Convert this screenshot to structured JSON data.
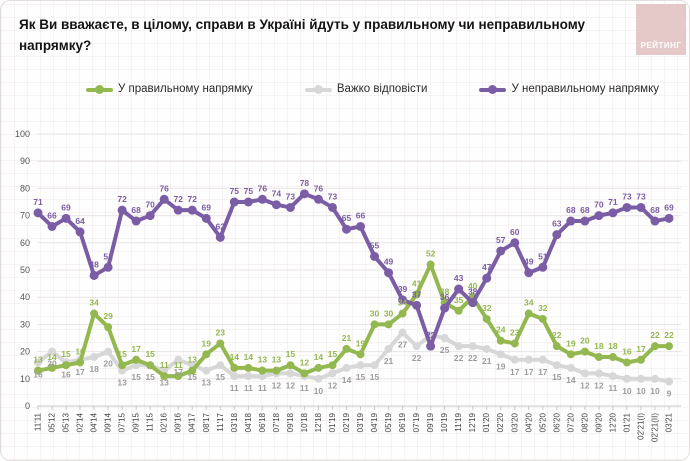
{
  "header": {
    "title": "Як Ви вважаєте, в цілому, справи в Україні йдуть у правильному чи неправильному напрямку?",
    "logo_text": "РЕЙТИНГ"
  },
  "legend": {
    "items": [
      {
        "label": "У правильному напрямку",
        "color": "#93b84f"
      },
      {
        "label": "Важко відповісти",
        "color": "#d7d7d7"
      },
      {
        "label": "У неправильному напрямку",
        "color": "#7b5da5"
      }
    ]
  },
  "chart_data": {
    "type": "line",
    "title": "Як Ви вважаєте, в цілому, справи в Україні йдуть у правильному чи неправильному напрямку?",
    "xlabel": "",
    "ylabel": "",
    "ylim": [
      0,
      100
    ],
    "yticks": [
      0,
      10,
      20,
      30,
      40,
      50,
      60,
      70,
      80,
      90,
      100
    ],
    "grid": true,
    "legend_position": "top",
    "categories": [
      "11'11",
      "05'12",
      "05'13",
      "02'14",
      "04'14",
      "09'14",
      "07'15",
      "09'15",
      "11'15",
      "02'16",
      "09'16",
      "04'17",
      "08'17",
      "11'17",
      "03'18",
      "04'18",
      "06'18",
      "07'18",
      "09'18",
      "10'18",
      "12'18",
      "01'19",
      "02'19",
      "03'19",
      "04'19",
      "05'19",
      "06'19",
      "07'19",
      "09'19",
      "10'19",
      "11'19",
      "12'19",
      "01'20",
      "02'20",
      "03'20",
      "04'20",
      "05'20",
      "06'20",
      "07'20",
      "08'20",
      "09'20",
      "12'20",
      "01'21",
      "02'21(I)",
      "02'21(II)",
      "03'21"
    ],
    "series": [
      {
        "name": "У правильному напрямку",
        "color": "#93b84f",
        "label_color": "#93b84f",
        "label_position": "above",
        "hidden_label_indices": [],
        "values": [
          13,
          14,
          15,
          16,
          34,
          29,
          15,
          17,
          15,
          11,
          11,
          13,
          19,
          23,
          14,
          14,
          13,
          13,
          15,
          12,
          14,
          15,
          21,
          19,
          30,
          30,
          34,
          41,
          52,
          38,
          35,
          40,
          32,
          24,
          23,
          34,
          32,
          22,
          19,
          20,
          18,
          18,
          16,
          17,
          22,
          22
        ]
      },
      {
        "name": "Важко відповісти",
        "color": "#d7d7d7",
        "label_color": "#9d9d9d",
        "label_position": "below",
        "hidden_label_indices": [
          28
        ],
        "values": [
          16,
          20,
          16,
          17,
          18,
          20,
          13,
          15,
          15,
          13,
          17,
          15,
          13,
          15,
          11,
          11,
          11,
          12,
          12,
          11,
          10,
          12,
          14,
          15,
          15,
          21,
          27,
          22,
          26,
          25,
          22,
          22,
          21,
          19,
          17,
          17,
          17,
          15,
          14,
          12,
          12,
          11,
          10,
          10,
          10,
          9
        ]
      },
      {
        "name": "У неправильному напрямку",
        "color": "#7b5da5",
        "label_color": "#7b5da5",
        "label_position": "above",
        "hidden_label_indices": [],
        "values": [
          71,
          66,
          69,
          64,
          48,
          51,
          72,
          68,
          70,
          76,
          72,
          72,
          69,
          62,
          75,
          75,
          76,
          74,
          73,
          78,
          76,
          73,
          65,
          66,
          55,
          49,
          39,
          37,
          22,
          36,
          43,
          38,
          47,
          57,
          60,
          49,
          51,
          63,
          68,
          68,
          70,
          71,
          73,
          73,
          68,
          69
        ]
      }
    ],
    "draw_order": [
      1,
      0,
      2
    ],
    "axis_color": "#c9c9c9",
    "gridline_color": "#e7e4e4",
    "ytick_color": "#555555",
    "xtick_color": "#444444"
  }
}
